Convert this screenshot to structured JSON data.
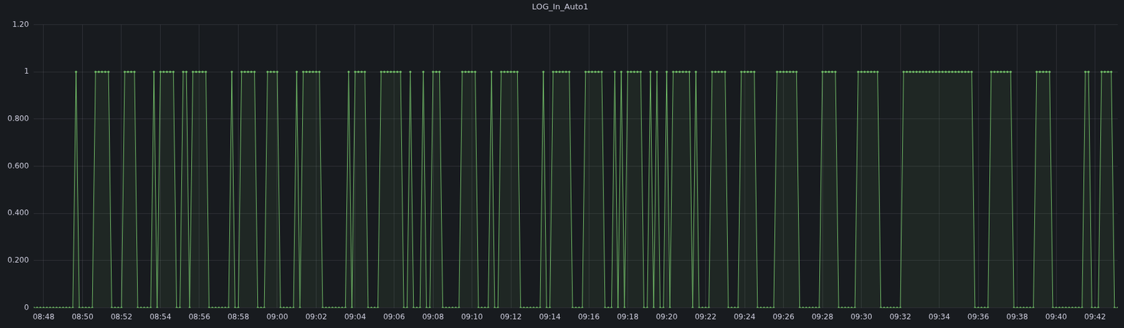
{
  "chart_data": {
    "type": "line",
    "title": "LOG_In_Auto1",
    "color": "#73bf69",
    "marker": "circle",
    "line_style": "solid",
    "grid": true,
    "ylim": [
      0,
      1.2
    ],
    "yticks": [
      0,
      {
        "value": 0.2,
        "label": "0.200"
      },
      {
        "value": 0.4,
        "label": "0.400"
      },
      {
        "value": 0.6,
        "label": "0.600"
      },
      {
        "value": 0.8,
        "label": "0.800"
      },
      1,
      {
        "value": 1.2,
        "label": "1.20"
      }
    ],
    "categories": [
      null,
      null,
      null,
      "08:48",
      null,
      null,
      null,
      null,
      null,
      null,
      null,
      null,
      null,
      null,
      null,
      "08:50",
      null,
      null,
      null,
      null,
      null,
      null,
      null,
      null,
      null,
      null,
      null,
      "08:52",
      null,
      null,
      null,
      null,
      null,
      null,
      null,
      null,
      null,
      null,
      null,
      "08:54",
      null,
      null,
      null,
      null,
      null,
      null,
      null,
      null,
      null,
      null,
      null,
      "08:56",
      null,
      null,
      null,
      null,
      null,
      null,
      null,
      null,
      null,
      null,
      null,
      "08:58",
      null,
      null,
      null,
      null,
      null,
      null,
      null,
      null,
      null,
      null,
      null,
      "09:00",
      null,
      null,
      null,
      null,
      null,
      null,
      null,
      null,
      null,
      null,
      null,
      "09:02",
      null,
      null,
      null,
      null,
      null,
      null,
      null,
      null,
      null,
      null,
      null,
      "09:04",
      null,
      null,
      null,
      null,
      null,
      null,
      null,
      null,
      null,
      null,
      null,
      "09:06",
      null,
      null,
      null,
      null,
      null,
      null,
      null,
      null,
      null,
      null,
      null,
      "09:08",
      null,
      null,
      null,
      null,
      null,
      null,
      null,
      null,
      null,
      null,
      null,
      "09:10",
      null,
      null,
      null,
      null,
      null,
      null,
      null,
      null,
      null,
      null,
      null,
      "09:12",
      null,
      null,
      null,
      null,
      null,
      null,
      null,
      null,
      null,
      null,
      null,
      "09:14",
      null,
      null,
      null,
      null,
      null,
      null,
      null,
      null,
      null,
      null,
      null,
      "09:16",
      null,
      null,
      null,
      null,
      null,
      null,
      null,
      null,
      null,
      null,
      null,
      "09:18",
      null,
      null,
      null,
      null,
      null,
      null,
      null,
      null,
      null,
      null,
      null,
      "09:20",
      null,
      null,
      null,
      null,
      null,
      null,
      null,
      null,
      null,
      null,
      null,
      "09:22",
      null,
      null,
      null,
      null,
      null,
      null,
      null,
      null,
      null,
      null,
      null,
      "09:24",
      null,
      null,
      null,
      null,
      null,
      null,
      null,
      null,
      null,
      null,
      null,
      "09:26",
      null,
      null,
      null,
      null,
      null,
      null,
      null,
      null,
      null,
      null,
      null,
      "09:28",
      null,
      null,
      null,
      null,
      null,
      null,
      null,
      null,
      null,
      null,
      null,
      "09:30",
      null,
      null,
      null,
      null,
      null,
      null,
      null,
      null,
      null,
      null,
      null,
      "09:32",
      null,
      null,
      null,
      null,
      null,
      null,
      null,
      null,
      null,
      null,
      null,
      "09:34",
      null,
      null,
      null,
      null,
      null,
      null,
      null,
      null,
      null,
      null,
      null,
      "09:36",
      null,
      null,
      null,
      null,
      null,
      null,
      null,
      null,
      null,
      null,
      null,
      "09:38",
      null,
      null,
      null,
      null,
      null,
      null,
      null,
      null,
      null,
      null,
      null,
      "09:40",
      null,
      null,
      null,
      null,
      null,
      null,
      null,
      null,
      null,
      null,
      null,
      "09:42",
      null,
      null,
      null,
      null,
      null,
      null,
      null
    ],
    "values": [
      0,
      0,
      0,
      0,
      0,
      0,
      0,
      0,
      0,
      0,
      0,
      0,
      0,
      1,
      0,
      0,
      0,
      0,
      0,
      1,
      1,
      1,
      1,
      1,
      0,
      0,
      0,
      0,
      1,
      1,
      1,
      1,
      0,
      0,
      0,
      0,
      0,
      1,
      0,
      1,
      1,
      1,
      1,
      1,
      0,
      0,
      1,
      1,
      0,
      1,
      1,
      1,
      1,
      1,
      0,
      0,
      0,
      0,
      0,
      0,
      0,
      1,
      0,
      0,
      1,
      1,
      1,
      1,
      1,
      0,
      0,
      0,
      1,
      1,
      1,
      1,
      0,
      0,
      0,
      0,
      0,
      1,
      0,
      1,
      1,
      1,
      1,
      1,
      1,
      0,
      0,
      0,
      0,
      0,
      0,
      0,
      0,
      1,
      0,
      1,
      1,
      1,
      1,
      0,
      0,
      0,
      0,
      1,
      1,
      1,
      1,
      1,
      1,
      1,
      0,
      0,
      1,
      0,
      0,
      0,
      1,
      0,
      0,
      1,
      1,
      1,
      0,
      0,
      0,
      0,
      0,
      0,
      1,
      1,
      1,
      1,
      1,
      0,
      0,
      0,
      0,
      1,
      0,
      0,
      1,
      1,
      1,
      1,
      1,
      1,
      0,
      0,
      0,
      0,
      0,
      0,
      0,
      1,
      0,
      0,
      1,
      1,
      1,
      1,
      1,
      1,
      0,
      0,
      0,
      0,
      1,
      1,
      1,
      1,
      1,
      1,
      0,
      0,
      0,
      1,
      0,
      1,
      0,
      1,
      1,
      1,
      1,
      1,
      0,
      0,
      1,
      0,
      1,
      0,
      0,
      1,
      0,
      1,
      1,
      1,
      1,
      1,
      1,
      0,
      1,
      0,
      0,
      0,
      0,
      1,
      1,
      1,
      1,
      1,
      0,
      0,
      0,
      0,
      1,
      1,
      1,
      1,
      1,
      0,
      0,
      0,
      0,
      0,
      0,
      1,
      1,
      1,
      1,
      1,
      1,
      1,
      0,
      0,
      0,
      0,
      0,
      0,
      0,
      1,
      1,
      1,
      1,
      1,
      0,
      0,
      0,
      0,
      0,
      0,
      1,
      1,
      1,
      1,
      1,
      1,
      1,
      0,
      0,
      0,
      0,
      0,
      0,
      0,
      1,
      1,
      1,
      1,
      1,
      1,
      1,
      1,
      1,
      1,
      1,
      1,
      1,
      1,
      1,
      1,
      1,
      1,
      1,
      1,
      1,
      1,
      0,
      0,
      0,
      0,
      0,
      1,
      1,
      1,
      1,
      1,
      1,
      1,
      0,
      0,
      0,
      0,
      0,
      0,
      0,
      1,
      1,
      1,
      1,
      1,
      0,
      0,
      0,
      0,
      0,
      0,
      0,
      0,
      0,
      0,
      1,
      1,
      0,
      0,
      0,
      1,
      1,
      1,
      1,
      0,
      0
    ]
  }
}
